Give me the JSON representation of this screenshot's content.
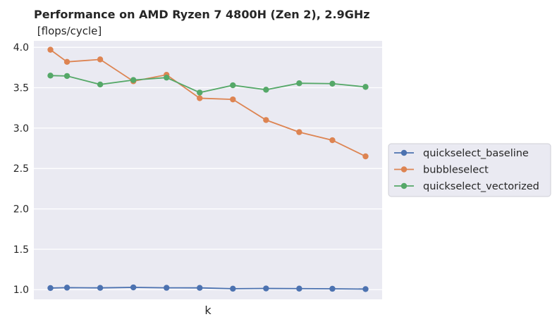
{
  "chart_data": {
    "type": "line",
    "title": "Performance on AMD Ryzen 7 4800H (Zen 2),  2.9GHz",
    "subtitle": " [flops/cycle]",
    "xlabel": "k",
    "ylabel": "",
    "ylim": [
      0.88,
      4.08
    ],
    "yticks": [
      "1.0",
      "1.5",
      "2.0",
      "2.5",
      "3.0",
      "3.5",
      "4.0"
    ],
    "x": [
      1,
      2,
      4,
      6,
      8,
      10,
      12,
      14,
      16,
      18,
      20
    ],
    "xlim": [
      0,
      21
    ],
    "grid": true,
    "legend_position": "center-right outside",
    "series": [
      {
        "name": "quickselect_baseline",
        "color": "#4c72b0",
        "values": [
          1.02,
          1.025,
          1.022,
          1.028,
          1.023,
          1.022,
          1.012,
          1.015,
          1.013,
          1.011,
          1.007
        ]
      },
      {
        "name": "bubbleselect",
        "color": "#dd8452",
        "values": [
          3.97,
          3.82,
          3.85,
          3.58,
          3.66,
          3.37,
          3.355,
          3.1,
          2.95,
          2.85,
          2.65
        ]
      },
      {
        "name": "quickselect_vectorized",
        "color": "#55a868",
        "values": [
          3.65,
          3.645,
          3.54,
          3.595,
          3.625,
          3.44,
          3.53,
          3.475,
          3.555,
          3.55,
          3.51
        ]
      }
    ]
  }
}
